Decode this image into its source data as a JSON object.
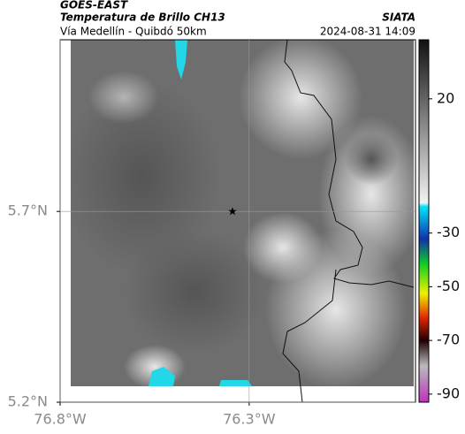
{
  "header": {
    "left": [
      "GOES-EAST",
      "Temperatura de Brillo CH13",
      "Vía Medellín - Quibdó 50km"
    ],
    "right": [
      "SIATA",
      "2024-08-31 14:09"
    ]
  },
  "map": {
    "xlim": [
      -76.8,
      -75.86
    ],
    "ylim": [
      5.2,
      6.15
    ],
    "xticks": [
      {
        "value": -76.8,
        "label": "76.8°W"
      },
      {
        "value": -76.3,
        "label": "76.3°W"
      }
    ],
    "yticks": [
      {
        "value": 5.2,
        "label": "5.2°N"
      },
      {
        "value": 5.7,
        "label": "5.7°N"
      }
    ],
    "grid": true,
    "marker": {
      "lon": -76.344,
      "lat": 5.7
    }
  },
  "colorbar": {
    "clim": [
      42,
      -93
    ],
    "ticks": [
      20,
      -30,
      -50,
      -70,
      -90
    ]
  }
}
